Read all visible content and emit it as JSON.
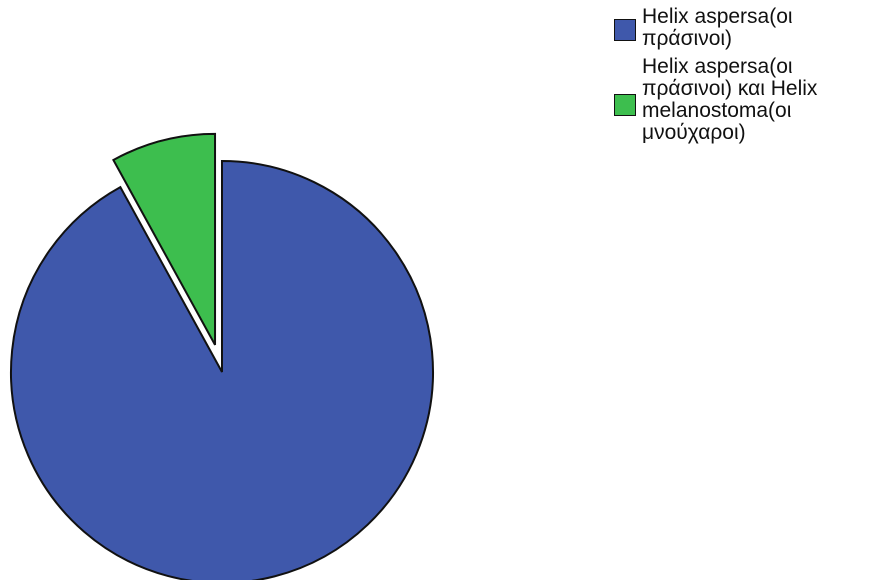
{
  "chart_data": {
    "type": "pie",
    "slices": [
      {
        "label": "Helix aspersa(οι πράσινοι)",
        "value": 92,
        "color": "#3F58AB"
      },
      {
        "label": "Helix aspersa(οι πράσινοι) και Helix melanostoma(οι μνούχαροι)",
        "value": 8,
        "color": "#3DBE4E",
        "exploded": true
      }
    ],
    "legend_position": "top-right",
    "legend": [
      {
        "label": "Helix aspersa(οι πράσινοι)",
        "color": "#3F58AB"
      },
      {
        "label": "Helix aspersa(οι πράσινοι) και Helix melanostoma(οι μνούχαροι)",
        "color": "#3DBE4E"
      }
    ]
  }
}
